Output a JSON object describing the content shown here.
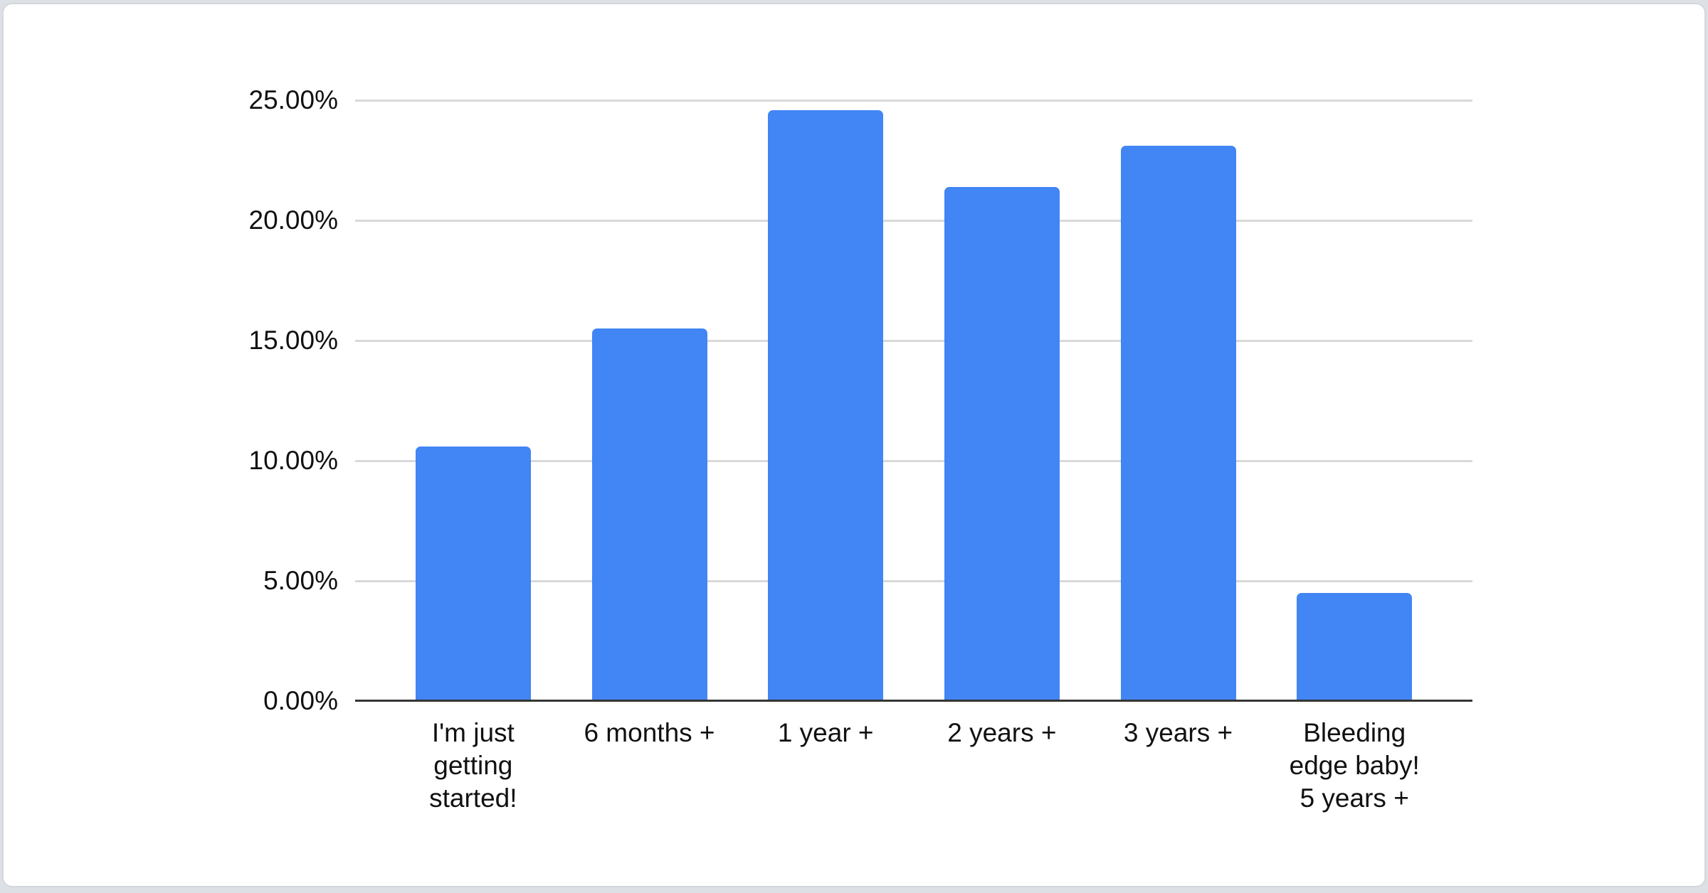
{
  "chart_data": {
    "type": "bar",
    "categories": [
      [
        "I'm just",
        "getting",
        "started!"
      ],
      [
        "6 months +"
      ],
      [
        "1 year +"
      ],
      [
        "2 years +"
      ],
      [
        "3 years +"
      ],
      [
        "Bleeding",
        "edge baby!",
        "5 years +"
      ]
    ],
    "values": [
      10.6,
      15.5,
      24.6,
      21.4,
      23.1,
      4.5
    ],
    "yticks": [
      {
        "value": 0,
        "label": "0.00%"
      },
      {
        "value": 5,
        "label": "5.00%"
      },
      {
        "value": 10,
        "label": "10.00%"
      },
      {
        "value": 15,
        "label": "15.00%"
      },
      {
        "value": 20,
        "label": "20.00%"
      },
      {
        "value": 25,
        "label": "25.00%"
      }
    ],
    "ylim": [
      0,
      25
    ],
    "grid": "on",
    "legend": "none",
    "bar_color": "#4285f4",
    "gridline_color": "#d9d9d9",
    "axis_color": "#353535"
  }
}
